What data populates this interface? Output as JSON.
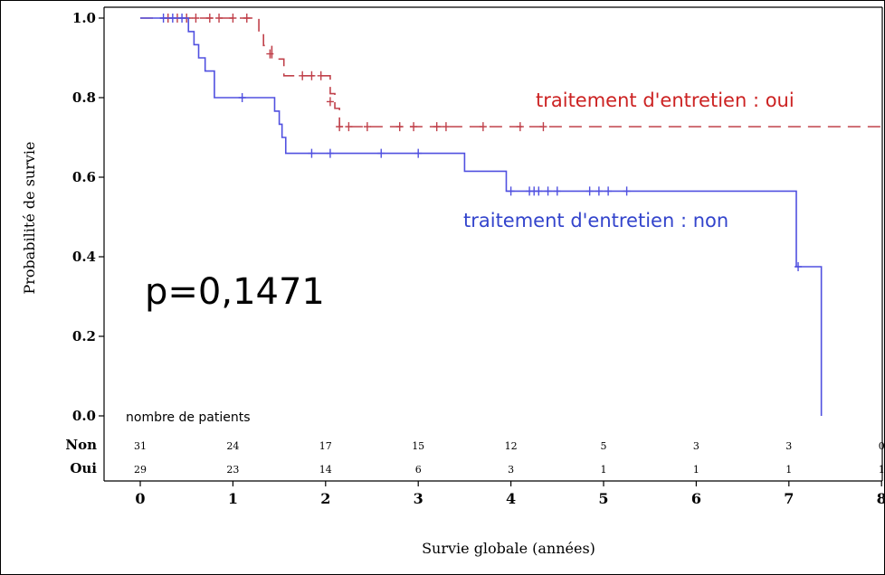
{
  "chart_data": {
    "type": "line",
    "subtype": "kaplan-meier",
    "xlabel": "Survie globale (années)",
    "ylabel": "Probabilité de survie",
    "xlim": [
      0,
      8
    ],
    "ylim": [
      0,
      1
    ],
    "x_ticks": [
      "0",
      "1",
      "2",
      "3",
      "4",
      "5",
      "6",
      "7",
      "8"
    ],
    "y_ticks": [
      "0.0",
      "0.2",
      "0.4",
      "0.6",
      "0.8",
      "1.0"
    ],
    "grid": false,
    "annotation": "p=0,1471",
    "series": [
      {
        "name": "traitement d'entretien : oui",
        "color": "#c0404a",
        "dash": "dashed",
        "steps": [
          [
            0,
            1.0
          ],
          [
            1.28,
            0.966
          ],
          [
            1.33,
            0.931
          ],
          [
            1.42,
            0.897
          ],
          [
            1.55,
            0.855
          ],
          [
            2.05,
            0.81
          ],
          [
            2.1,
            0.773
          ],
          [
            2.15,
            0.727
          ],
          [
            8.1,
            0.727
          ]
        ],
        "censored": [
          [
            0.3,
            1.0
          ],
          [
            0.4,
            1.0
          ],
          [
            0.5,
            1.0
          ],
          [
            0.6,
            1.0
          ],
          [
            0.75,
            1.0
          ],
          [
            0.85,
            1.0
          ],
          [
            1.0,
            1.0
          ],
          [
            1.15,
            1.0
          ],
          [
            1.4,
            0.91
          ],
          [
            1.75,
            0.855
          ],
          [
            1.85,
            0.855
          ],
          [
            1.95,
            0.855
          ],
          [
            2.05,
            0.79
          ],
          [
            2.15,
            0.727
          ],
          [
            2.25,
            0.727
          ],
          [
            2.45,
            0.727
          ],
          [
            2.8,
            0.727
          ],
          [
            2.95,
            0.727
          ],
          [
            3.2,
            0.727
          ],
          [
            3.3,
            0.727
          ],
          [
            3.7,
            0.727
          ],
          [
            4.1,
            0.727
          ],
          [
            4.35,
            0.727
          ]
        ]
      },
      {
        "name": "traitement d'entretien : non",
        "color": "#5050e0",
        "dash": "solid",
        "steps": [
          [
            0,
            1.0
          ],
          [
            0.52,
            0.966
          ],
          [
            0.58,
            0.933
          ],
          [
            0.63,
            0.9
          ],
          [
            0.7,
            0.867
          ],
          [
            0.8,
            0.8
          ],
          [
            1.45,
            0.766
          ],
          [
            1.5,
            0.733
          ],
          [
            1.53,
            0.7
          ],
          [
            1.57,
            0.66
          ],
          [
            3.5,
            0.615
          ],
          [
            3.95,
            0.565
          ],
          [
            7.08,
            0.375
          ],
          [
            7.35,
            0.0
          ]
        ],
        "censored": [
          [
            0.25,
            1.0
          ],
          [
            0.35,
            1.0
          ],
          [
            0.45,
            1.0
          ],
          [
            1.1,
            0.8
          ],
          [
            1.85,
            0.66
          ],
          [
            2.05,
            0.66
          ],
          [
            2.6,
            0.66
          ],
          [
            3.0,
            0.66
          ],
          [
            4.0,
            0.565
          ],
          [
            4.2,
            0.565
          ],
          [
            4.25,
            0.565
          ],
          [
            4.3,
            0.565
          ],
          [
            4.4,
            0.565
          ],
          [
            4.5,
            0.565
          ],
          [
            4.85,
            0.565
          ],
          [
            4.95,
            0.565
          ],
          [
            5.05,
            0.565
          ],
          [
            5.25,
            0.565
          ],
          [
            7.1,
            0.375
          ]
        ]
      }
    ],
    "risk_table": {
      "title": "nombre de patients",
      "times": [
        0,
        1,
        2,
        3,
        4,
        5,
        6,
        7,
        8
      ],
      "rows": [
        {
          "label": "Non",
          "counts": [
            "31",
            "24",
            "17",
            "15",
            "12",
            "5",
            "3",
            "3",
            "0"
          ]
        },
        {
          "label": "Oui",
          "counts": [
            "29",
            "23",
            "14",
            "6",
            "3",
            "1",
            "1",
            "1",
            "1"
          ]
        }
      ]
    }
  }
}
